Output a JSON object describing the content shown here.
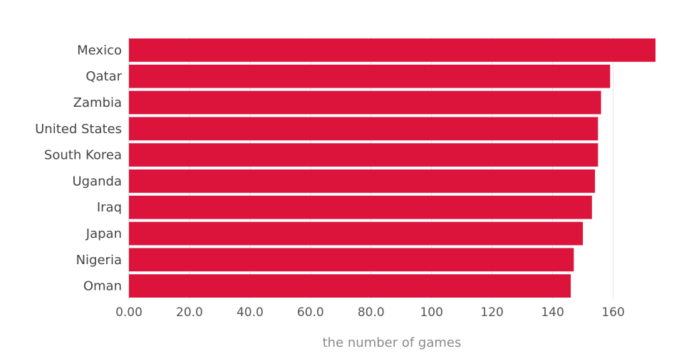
{
  "chart_data": {
    "type": "bar",
    "orientation": "horizontal",
    "categories": [
      "Mexico",
      "Qatar",
      "Zambia",
      "United States",
      "South Korea",
      "Uganda",
      "Iraq",
      "Japan",
      "Nigeria",
      "Oman"
    ],
    "values": [
      174,
      159,
      156,
      155,
      155,
      154,
      153,
      150,
      147,
      146
    ],
    "xlabel": "the number of games",
    "ylabel": "",
    "xlim": [
      0,
      174
    ],
    "xticks": [
      0,
      20,
      40,
      60,
      80,
      100,
      120,
      140,
      160
    ],
    "xtick_labels": [
      "0.00",
      "20.0",
      "40.0",
      "60.0",
      "80.0",
      "100",
      "120",
      "140",
      "160"
    ],
    "grid": true,
    "bar_color": "#dc143c",
    "grid_color": "#e6e6e6"
  }
}
